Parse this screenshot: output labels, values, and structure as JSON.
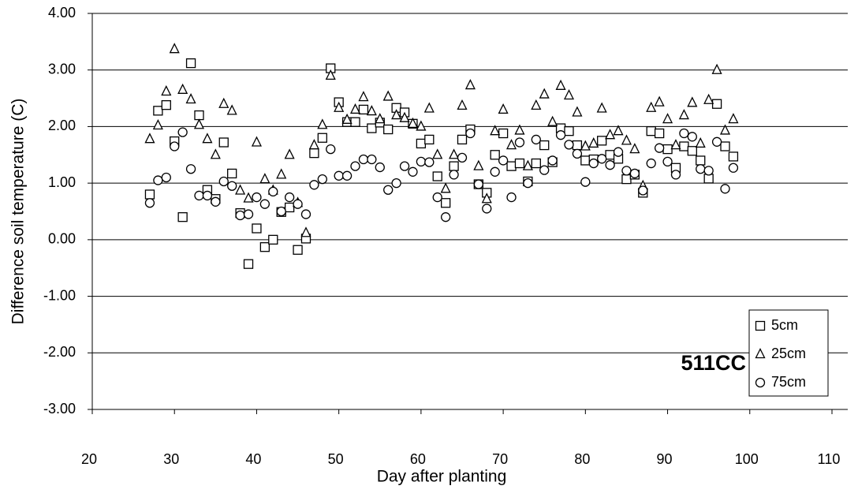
{
  "chart_data": {
    "type": "scatter",
    "x_label": "Day after planting",
    "y_label": "Difference soil temperature (C)",
    "annotation": "511CC",
    "xlim": [
      20,
      110
    ],
    "xticks": [
      20,
      30,
      40,
      50,
      60,
      70,
      80,
      90,
      100,
      110
    ],
    "ylim": [
      -3,
      4
    ],
    "yticks": [
      {
        "value": -3,
        "label": "-3.00"
      },
      {
        "value": -2,
        "label": "-2.00"
      },
      {
        "value": -1,
        "label": "-1.00"
      },
      {
        "value": 0,
        "label": "0.00"
      },
      {
        "value": 1,
        "label": "1.00"
      },
      {
        "value": 2,
        "label": "2.00"
      },
      {
        "value": 3,
        "label": "3.00"
      },
      {
        "value": 4,
        "label": "4.00"
      }
    ],
    "grid": true,
    "legend": "right",
    "x": [
      27,
      28,
      29,
      30,
      31,
      32,
      33,
      34,
      35,
      36,
      37,
      38,
      39,
      40,
      41,
      42,
      43,
      44,
      45,
      46,
      47,
      48,
      49,
      50,
      51,
      52,
      53,
      54,
      55,
      56,
      57,
      58,
      59,
      60,
      61,
      62,
      63,
      64,
      65,
      66,
      67,
      68,
      69,
      70,
      71,
      72,
      73,
      74,
      75,
      76,
      77,
      78,
      79,
      80,
      81,
      82,
      83,
      84,
      85,
      86,
      87,
      88,
      89,
      90,
      91,
      92,
      93,
      94,
      95,
      96,
      97,
      98
    ],
    "series": [
      {
        "name": "5cm",
        "color": "#000000",
        "marker": "square",
        "values": [
          0.8,
          2.28,
          2.38,
          1.74,
          0.4,
          3.12,
          2.2,
          0.88,
          0.72,
          1.72,
          1.17,
          0.47,
          -0.43,
          0.2,
          -0.13,
          0.0,
          0.49,
          0.57,
          -0.18,
          0.02,
          1.53,
          1.8,
          3.03,
          2.43,
          2.08,
          2.08,
          2.3,
          1.97,
          2.07,
          1.95,
          2.33,
          2.25,
          2.05,
          1.7,
          1.77,
          1.12,
          0.65,
          1.3,
          1.77,
          1.95,
          0.98,
          0.83,
          1.5,
          1.88,
          1.3,
          1.35,
          1.03,
          1.35,
          1.67,
          1.37,
          1.97,
          1.92,
          1.67,
          1.4,
          1.42,
          1.75,
          1.5,
          1.43,
          1.07,
          1.15,
          0.83,
          1.92,
          1.88,
          1.6,
          1.27,
          1.65,
          1.57,
          1.4,
          1.08,
          2.4,
          1.65,
          1.47
        ]
      },
      {
        "name": "25cm",
        "color": "#000000",
        "marker": "triangle",
        "values": [
          1.78,
          2.02,
          2.62,
          3.37,
          2.65,
          2.48,
          2.03,
          1.78,
          1.5,
          2.4,
          2.28,
          0.87,
          0.73,
          1.72,
          1.07,
          0.87,
          1.15,
          1.5,
          0.65,
          0.12,
          1.67,
          2.03,
          2.9,
          2.33,
          2.12,
          2.3,
          2.52,
          2.27,
          2.13,
          2.53,
          2.2,
          2.15,
          2.05,
          2.0,
          2.32,
          1.5,
          0.9,
          1.5,
          2.37,
          2.73,
          1.3,
          0.72,
          1.92,
          2.3,
          1.67,
          1.93,
          1.3,
          2.37,
          2.57,
          2.08,
          2.72,
          2.55,
          2.25,
          1.65,
          1.7,
          2.32,
          1.85,
          1.92,
          1.75,
          1.6,
          0.95,
          2.33,
          2.43,
          2.13,
          1.67,
          2.2,
          2.42,
          1.7,
          2.47,
          3.0,
          1.93,
          2.13
        ]
      },
      {
        "name": "75cm",
        "color": "#000000",
        "marker": "circle",
        "values": [
          0.65,
          1.05,
          1.1,
          1.65,
          1.9,
          1.25,
          0.78,
          0.78,
          0.67,
          1.03,
          0.95,
          0.43,
          0.45,
          0.75,
          0.63,
          0.85,
          0.5,
          0.75,
          0.63,
          0.45,
          0.97,
          1.07,
          1.6,
          1.13,
          1.13,
          1.3,
          1.42,
          1.42,
          1.28,
          0.88,
          1.0,
          1.3,
          1.2,
          1.38,
          1.37,
          0.75,
          0.4,
          1.15,
          1.45,
          1.88,
          0.98,
          0.55,
          1.2,
          1.4,
          0.75,
          1.72,
          1.0,
          1.77,
          1.23,
          1.4,
          1.85,
          1.68,
          1.52,
          1.02,
          1.35,
          1.43,
          1.32,
          1.55,
          1.22,
          1.17,
          0.87,
          1.35,
          1.62,
          1.38,
          1.15,
          1.88,
          1.82,
          1.25,
          1.22,
          1.73,
          0.9,
          1.27
        ]
      }
    ]
  }
}
